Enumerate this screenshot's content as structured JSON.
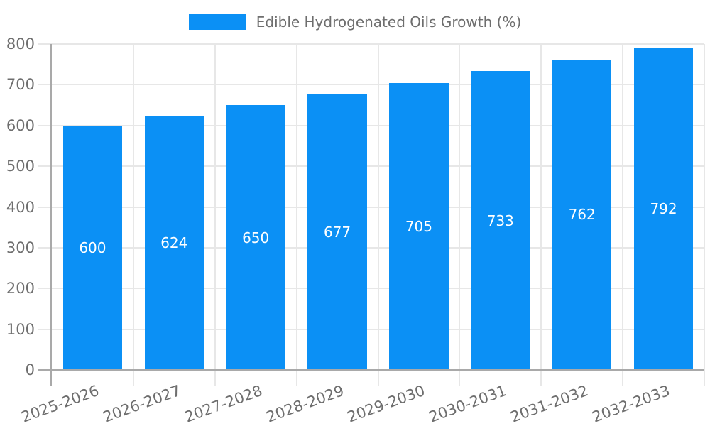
{
  "chart_data": {
    "type": "bar",
    "title": "Edible Hydrogenated Oils Growth (%)",
    "categories": [
      "2025-2026",
      "2026-2027",
      "2027-2028",
      "2028-2029",
      "2029-2030",
      "2030-2031",
      "2031-2032",
      "2032-2033"
    ],
    "series": [
      {
        "name": "Edible Hydrogenated Oils Growth (%)",
        "values": [
          600,
          624,
          650,
          677,
          705,
          733,
          762,
          792
        ]
      }
    ],
    "xlabel": "",
    "ylabel": "",
    "ylim": [
      0,
      800
    ],
    "ytick_step": 100,
    "yticks": [
      0,
      100,
      200,
      300,
      400,
      500,
      600,
      700,
      800
    ],
    "grid": true,
    "legend_position": "top-center",
    "value_label_position": "inside-middle",
    "x_label_rotation": -20,
    "colors": {
      "bar": "#0b90f5",
      "gridline": "#e7e7e7",
      "axis": "#a9a9a9",
      "text": "#6e6e6e",
      "value_label": "#ffffff",
      "background": "#ffffff"
    }
  }
}
